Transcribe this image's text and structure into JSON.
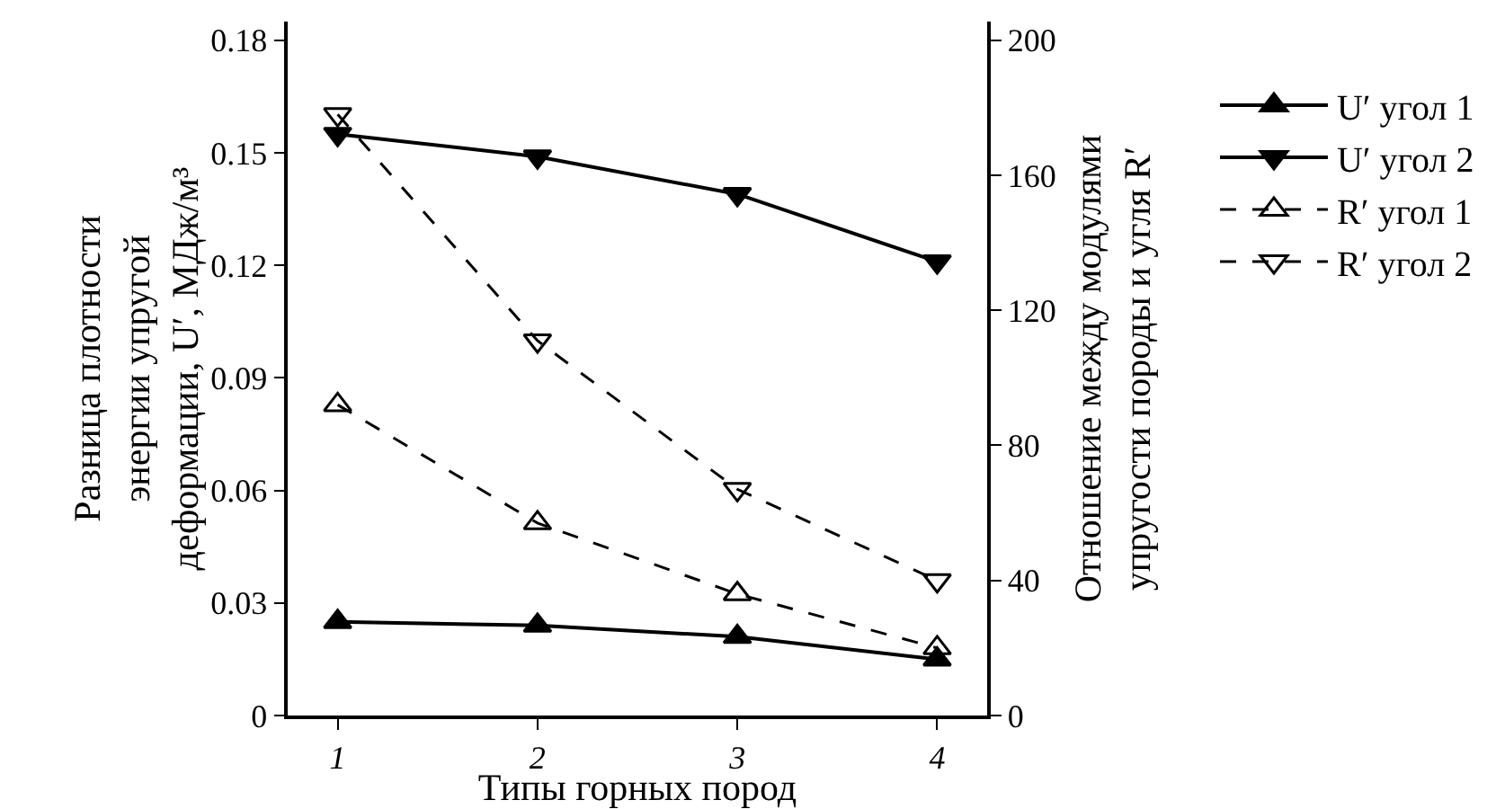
{
  "chart_data": {
    "type": "line",
    "xlabel": "Типы горных пород",
    "ylabel": "Разница плотности\nэнергии упругой\nдеформации, U′, МДж/м³",
    "y2label": "Отношение между модулями\nупругости породы и угля R′",
    "x": [
      1,
      2,
      3,
      4
    ],
    "xlim": [
      0.75,
      4.25
    ],
    "xticks": [
      1,
      2,
      3,
      4
    ],
    "ylim": [
      0,
      0.185
    ],
    "yticks": [
      0,
      0.03,
      0.06,
      0.09,
      0.12,
      0.15,
      0.18
    ],
    "y2lim": [
      0,
      205.5
    ],
    "y2ticks": [
      0,
      40,
      80,
      120,
      160,
      200
    ],
    "grid": false,
    "legend": "right",
    "series": [
      {
        "name": "U′ угол 1",
        "color": "#000000",
        "values": [
          0.025,
          0.024,
          0.021,
          0.015
        ],
        "marker": "triangle",
        "line_style": "solid"
      },
      {
        "name": "U′ угол 2",
        "color": "#000000",
        "values": [
          0.155,
          0.149,
          0.139,
          0.121
        ],
        "marker": "triangle-down",
        "line_style": "solid"
      },
      {
        "name": "R′ угол 1",
        "color": "#000000",
        "values": [
          92,
          57,
          36,
          20
        ],
        "marker": "triangle-open",
        "line_style": "dashed",
        "axis": "y2"
      },
      {
        "name": "R′ угол 2",
        "color": "#000000",
        "values": [
          178,
          111,
          67,
          40
        ],
        "marker": "triangle-down-open",
        "line_style": "dashed",
        "axis": "y2"
      }
    ]
  }
}
